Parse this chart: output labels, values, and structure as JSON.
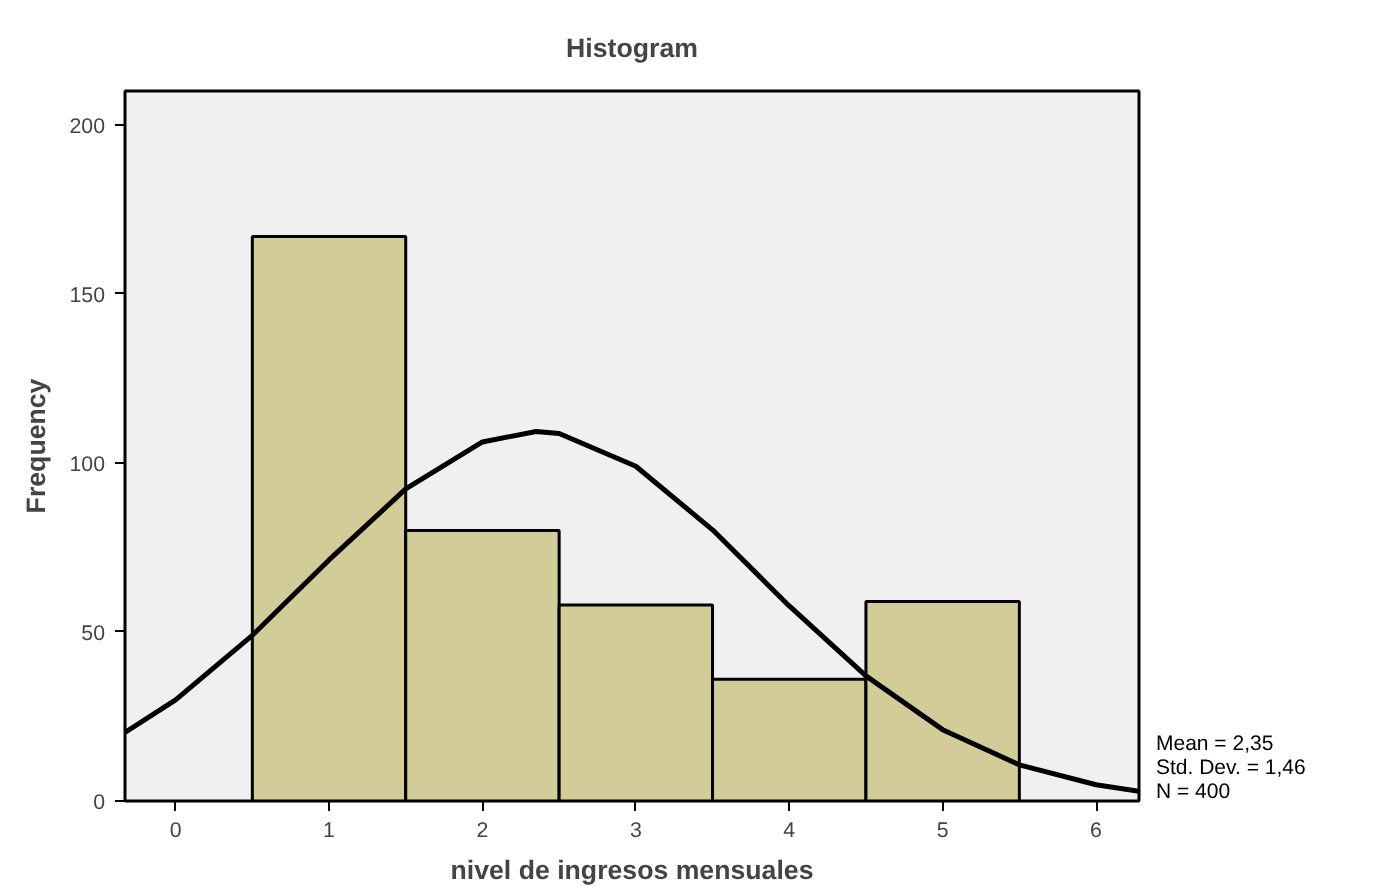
{
  "chart_data": {
    "type": "histogram",
    "title": "Histogram",
    "xlabel": "nivel de ingresos mensuales",
    "ylabel": "Frequency",
    "xlim": [
      -0.33,
      6.28
    ],
    "ylim": [
      0,
      210
    ],
    "xticks": [
      0,
      1,
      2,
      3,
      4,
      5,
      6
    ],
    "yticks": [
      0,
      50,
      100,
      150,
      200
    ],
    "series": [
      {
        "color": "#d2cd98",
        "bins": [
          0.5,
          1.5,
          2.5,
          3.5,
          4.5,
          5.5
        ],
        "values": [
          167,
          80,
          58,
          36,
          59
        ]
      },
      {
        "type": "line",
        "color": "#000000",
        "x": [
          -0.33,
          0,
          0.5,
          1,
          1.5,
          2,
          2.35,
          2.5,
          3,
          3.5,
          4,
          4.5,
          5,
          5.5,
          6,
          6.28
        ],
        "values": [
          20.3,
          29.9,
          49.0,
          71.3,
          92.3,
          106.2,
          109.3,
          108.7,
          99.0,
          80.2,
          57.7,
          37.0,
          21.1,
          10.7,
          4.8,
          2.9
        ]
      }
    ],
    "annotations": [
      "Mean = 2,35",
      "Std. Dev. = 1,46",
      "N = 400"
    ]
  }
}
